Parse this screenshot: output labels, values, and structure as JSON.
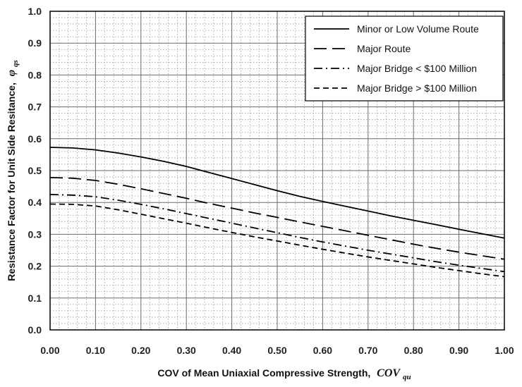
{
  "chart_data": {
    "type": "line",
    "xlabel": "COV of Mean Uniaxial Compressive Strength,",
    "xlabel_symbol": "COV",
    "xlabel_subscript": "qu",
    "ylabel": "Resistance Factor for Unit Side Resitance,",
    "ylabel_symbol": "φ",
    "ylabel_subscript": "qs",
    "xlim": [
      0,
      1
    ],
    "ylim": [
      0,
      1
    ],
    "x_ticks": [
      "0.00",
      "0.10",
      "0.20",
      "0.30",
      "0.40",
      "0.50",
      "0.60",
      "0.70",
      "0.80",
      "0.90",
      "1.00"
    ],
    "y_ticks": [
      "0.0",
      "0.1",
      "0.2",
      "0.3",
      "0.4",
      "0.5",
      "0.6",
      "0.7",
      "0.8",
      "0.9",
      "1.0"
    ],
    "grid": true,
    "legend_position": "top-right",
    "series": [
      {
        "name": "Minor or Low Volume Route",
        "style": "solid",
        "x": [
          0,
          0.05,
          0.1,
          0.15,
          0.2,
          0.25,
          0.3,
          0.35,
          0.4,
          0.45,
          0.5,
          0.55,
          0.6,
          0.65,
          0.7,
          0.75,
          0.8,
          0.85,
          0.9,
          0.95,
          1.0
        ],
        "y": [
          0.573,
          0.571,
          0.565,
          0.555,
          0.543,
          0.529,
          0.513,
          0.494,
          0.475,
          0.456,
          0.437,
          0.419,
          0.403,
          0.388,
          0.373,
          0.358,
          0.344,
          0.33,
          0.316,
          0.302,
          0.288
        ]
      },
      {
        "name": "Major Route",
        "style": "long-dash",
        "x": [
          0,
          0.05,
          0.1,
          0.15,
          0.2,
          0.25,
          0.3,
          0.35,
          0.4,
          0.45,
          0.5,
          0.55,
          0.6,
          0.65,
          0.7,
          0.75,
          0.8,
          0.85,
          0.9,
          0.95,
          1.0
        ],
        "y": [
          0.478,
          0.476,
          0.469,
          0.457,
          0.443,
          0.428,
          0.413,
          0.397,
          0.382,
          0.367,
          0.353,
          0.339,
          0.325,
          0.311,
          0.297,
          0.283,
          0.269,
          0.256,
          0.244,
          0.233,
          0.222
        ]
      },
      {
        "name": "Major Bridge < $100 Million",
        "style": "dash-dot",
        "x": [
          0,
          0.05,
          0.1,
          0.15,
          0.2,
          0.25,
          0.3,
          0.35,
          0.4,
          0.45,
          0.5,
          0.55,
          0.6,
          0.65,
          0.7,
          0.75,
          0.8,
          0.85,
          0.9,
          0.95,
          1.0
        ],
        "y": [
          0.425,
          0.423,
          0.418,
          0.407,
          0.394,
          0.38,
          0.365,
          0.35,
          0.335,
          0.32,
          0.305,
          0.29,
          0.276,
          0.263,
          0.25,
          0.238,
          0.226,
          0.214,
          0.203,
          0.193,
          0.183
        ]
      },
      {
        "name": "Major Bridge > $100 Million",
        "style": "short-dash",
        "x": [
          0,
          0.05,
          0.1,
          0.15,
          0.2,
          0.25,
          0.3,
          0.35,
          0.4,
          0.45,
          0.5,
          0.55,
          0.6,
          0.65,
          0.7,
          0.75,
          0.8,
          0.85,
          0.9,
          0.95,
          1.0
        ],
        "y": [
          0.395,
          0.394,
          0.389,
          0.377,
          0.363,
          0.349,
          0.335,
          0.32,
          0.306,
          0.292,
          0.279,
          0.266,
          0.253,
          0.241,
          0.229,
          0.218,
          0.207,
          0.196,
          0.186,
          0.176,
          0.167
        ]
      }
    ]
  }
}
